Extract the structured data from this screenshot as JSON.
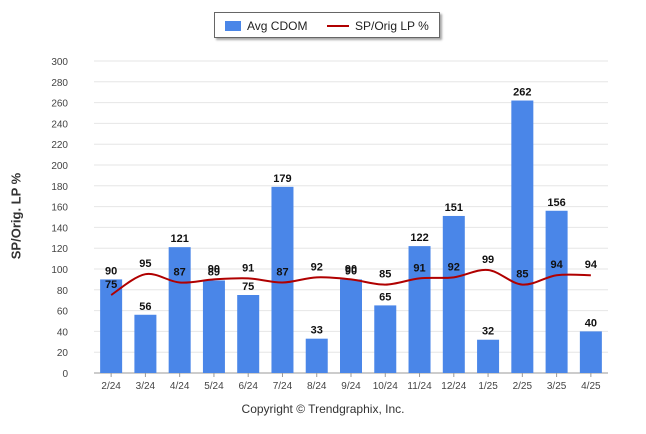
{
  "legend": {
    "bar_label": "Avg CDOM",
    "line_label": "SP/Orig LP %"
  },
  "footer": {
    "copyright": "Copyright © Trendgraphix, Inc."
  },
  "colors": {
    "bar": "#4a86e8",
    "line": "#b00000",
    "grid": "#e6e6e6"
  },
  "chart_data": {
    "type": "bar",
    "categories": [
      "2/24",
      "3/24",
      "4/24",
      "5/24",
      "6/24",
      "7/24",
      "8/24",
      "9/24",
      "10/24",
      "11/24",
      "12/24",
      "1/25",
      "2/25",
      "3/25",
      "4/25"
    ],
    "ylabel": "SP/Orig. LP %",
    "ylim": [
      0,
      300
    ],
    "yticks": [
      0,
      20,
      40,
      60,
      80,
      100,
      120,
      140,
      160,
      180,
      200,
      220,
      240,
      260,
      280,
      300
    ],
    "grid": true,
    "legend_position": "top-center",
    "series": [
      {
        "name": "Avg CDOM",
        "type": "bar",
        "values": [
          90,
          56,
          121,
          89,
          75,
          179,
          33,
          90,
          65,
          122,
          151,
          32,
          262,
          156,
          40
        ]
      },
      {
        "name": "SP/Orig LP %",
        "type": "line",
        "values": [
          75,
          95,
          87,
          90,
          91,
          87,
          92,
          90,
          85,
          91,
          92,
          99,
          85,
          94,
          94
        ]
      }
    ]
  }
}
